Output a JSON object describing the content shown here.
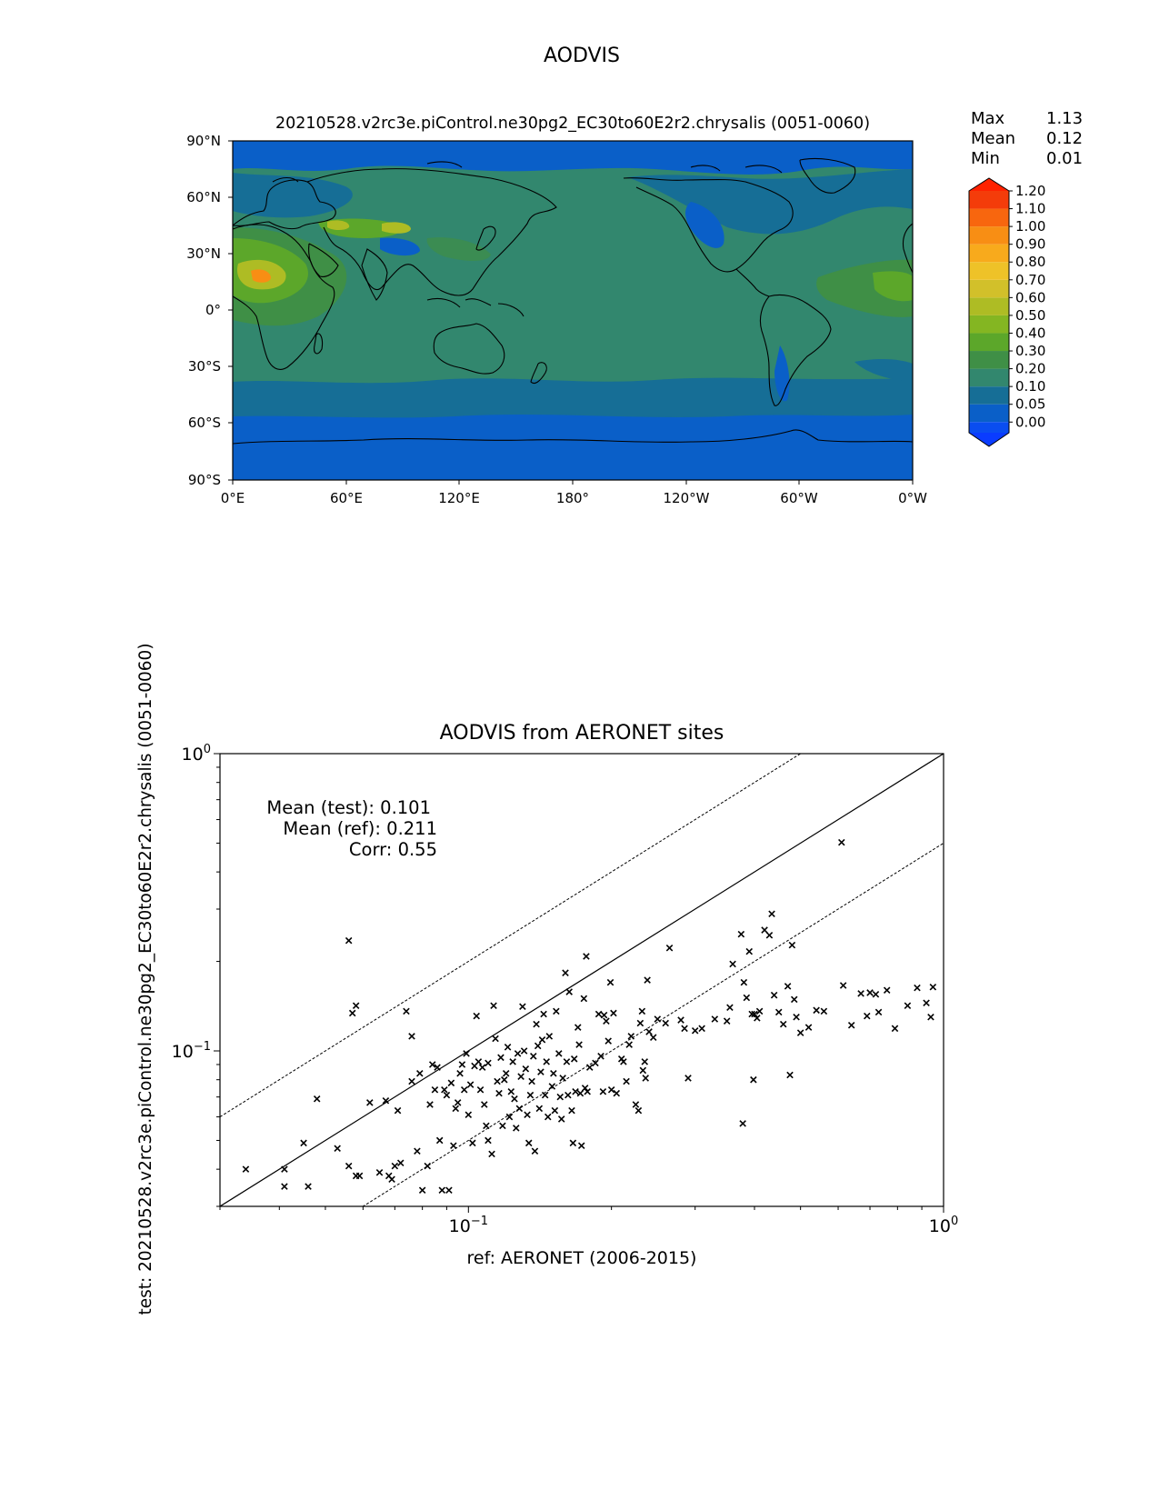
{
  "figure": {
    "suptitle": "AODVIS"
  },
  "map": {
    "title": "20210528.v2rc3e.piControl.ne30pg2_EC30to60E2r2.chrysalis (0051-0060)",
    "stats": [
      {
        "label": "Max",
        "value": "1.13"
      },
      {
        "label": "Mean",
        "value": "0.12"
      },
      {
        "label": "Min",
        "value": "0.01"
      }
    ],
    "lat_ticks": [
      "90°N",
      "60°N",
      "30°N",
      "0°",
      "30°S",
      "60°S",
      "90°S"
    ],
    "lon_ticks": [
      "0°E",
      "60°E",
      "120°E",
      "180°",
      "120°W",
      "60°W",
      "0°W"
    ]
  },
  "colorbar": {
    "levels": [
      "0.00",
      "0.05",
      "0.10",
      "0.20",
      "0.30",
      "0.40",
      "0.50",
      "0.60",
      "0.70",
      "0.80",
      "0.90",
      "1.00",
      "1.10",
      "1.20"
    ],
    "colors": [
      "#0a4df0",
      "#0a5fc8",
      "#166e96",
      "#32876e",
      "#3f8f46",
      "#5ca72a",
      "#84b622",
      "#aebc24",
      "#d2c02a",
      "#eec228",
      "#f8aa1c",
      "#f88e14",
      "#f8660e",
      "#f43c0a",
      "#ff2200"
    ],
    "under_color": "#0a3cff",
    "over_color": "#ff2200"
  },
  "chart_data": {
    "type": "scatter",
    "title": "AODVIS from AERONET sites",
    "xlabel": "ref: AERONET (2006-2015)",
    "ylabel": "test: 20210528.v2rc3e.piControl.ne30pg2_EC30to60E2r2.chrysalis (0051-0060)",
    "x_scale": "log",
    "y_scale": "log",
    "xlim": [
      0.03,
      1.0
    ],
    "ylim": [
      0.03,
      1.0
    ],
    "x_major_ticks": [
      {
        "value": 0.1,
        "base": "10",
        "exp": "−1"
      },
      {
        "value": 1.0,
        "base": "10",
        "exp": "0"
      }
    ],
    "y_major_ticks": [
      {
        "value": 0.1,
        "base": "10",
        "exp": "−1"
      },
      {
        "value": 1.0,
        "base": "10",
        "exp": "0"
      }
    ],
    "marker": "x",
    "reference_lines": [
      {
        "style": "solid",
        "slope": 1
      },
      {
        "style": "dashed",
        "slope": 2
      },
      {
        "style": "dashed",
        "slope": 0.5
      }
    ],
    "annotations": [
      "Mean (test): 0.101",
      "Mean (ref): 0.211",
      "Corr: 0.55"
    ],
    "points": [
      [
        0.034,
        0.04
      ],
      [
        0.041,
        0.04
      ],
      [
        0.041,
        0.035
      ],
      [
        0.045,
        0.049
      ],
      [
        0.046,
        0.035
      ],
      [
        0.048,
        0.069
      ],
      [
        0.053,
        0.047
      ],
      [
        0.056,
        0.235
      ],
      [
        0.057,
        0.134
      ],
      [
        0.058,
        0.142
      ],
      [
        0.056,
        0.041
      ],
      [
        0.058,
        0.038
      ],
      [
        0.059,
        0.038
      ],
      [
        0.062,
        0.067
      ],
      [
        0.065,
        0.039
      ],
      [
        0.067,
        0.068
      ],
      [
        0.068,
        0.038
      ],
      [
        0.069,
        0.037
      ],
      [
        0.07,
        0.041
      ],
      [
        0.071,
        0.063
      ],
      [
        0.072,
        0.042
      ],
      [
        0.074,
        0.136
      ],
      [
        0.076,
        0.112
      ],
      [
        0.076,
        0.079
      ],
      [
        0.078,
        0.046
      ],
      [
        0.079,
        0.084
      ],
      [
        0.08,
        0.034
      ],
      [
        0.082,
        0.041
      ],
      [
        0.083,
        0.066
      ],
      [
        0.084,
        0.09
      ],
      [
        0.085,
        0.074
      ],
      [
        0.086,
        0.088
      ],
      [
        0.087,
        0.05
      ],
      [
        0.088,
        0.034
      ],
      [
        0.089,
        0.074
      ],
      [
        0.09,
        0.071
      ],
      [
        0.091,
        0.034
      ],
      [
        0.092,
        0.078
      ],
      [
        0.093,
        0.048
      ],
      [
        0.094,
        0.064
      ],
      [
        0.095,
        0.067
      ],
      [
        0.096,
        0.084
      ],
      [
        0.097,
        0.09
      ],
      [
        0.098,
        0.074
      ],
      [
        0.099,
        0.098
      ],
      [
        0.1,
        0.061
      ],
      [
        0.101,
        0.077
      ],
      [
        0.102,
        0.049
      ],
      [
        0.103,
        0.089
      ],
      [
        0.104,
        0.131
      ],
      [
        0.105,
        0.092
      ],
      [
        0.106,
        0.074
      ],
      [
        0.107,
        0.088
      ],
      [
        0.108,
        0.066
      ],
      [
        0.109,
        0.056
      ],
      [
        0.11,
        0.091
      ],
      [
        0.11,
        0.05
      ],
      [
        0.112,
        0.045
      ],
      [
        0.113,
        0.142
      ],
      [
        0.114,
        0.11
      ],
      [
        0.115,
        0.079
      ],
      [
        0.116,
        0.072
      ],
      [
        0.117,
        0.095
      ],
      [
        0.118,
        0.056
      ],
      [
        0.119,
        0.08
      ],
      [
        0.12,
        0.084
      ],
      [
        0.121,
        0.103
      ],
      [
        0.122,
        0.06
      ],
      [
        0.123,
        0.073
      ],
      [
        0.124,
        0.092
      ],
      [
        0.125,
        0.069
      ],
      [
        0.126,
        0.055
      ],
      [
        0.127,
        0.098
      ],
      [
        0.128,
        0.064
      ],
      [
        0.129,
        0.082
      ],
      [
        0.13,
        0.141
      ],
      [
        0.131,
        0.1
      ],
      [
        0.132,
        0.087
      ],
      [
        0.133,
        0.061
      ],
      [
        0.134,
        0.049
      ],
      [
        0.135,
        0.071
      ],
      [
        0.136,
        0.079
      ],
      [
        0.137,
        0.096
      ],
      [
        0.138,
        0.046
      ],
      [
        0.139,
        0.123
      ],
      [
        0.14,
        0.104
      ],
      [
        0.141,
        0.064
      ],
      [
        0.142,
        0.085
      ],
      [
        0.143,
        0.109
      ],
      [
        0.144,
        0.133
      ],
      [
        0.145,
        0.071
      ],
      [
        0.146,
        0.092
      ],
      [
        0.147,
        0.06
      ],
      [
        0.148,
        0.112
      ],
      [
        0.15,
        0.076
      ],
      [
        0.151,
        0.084
      ],
      [
        0.152,
        0.063
      ],
      [
        0.153,
        0.136
      ],
      [
        0.155,
        0.098
      ],
      [
        0.156,
        0.07
      ],
      [
        0.157,
        0.059
      ],
      [
        0.158,
        0.081
      ],
      [
        0.16,
        0.183
      ],
      [
        0.161,
        0.092
      ],
      [
        0.162,
        0.071
      ],
      [
        0.163,
        0.158
      ],
      [
        0.165,
        0.063
      ],
      [
        0.166,
        0.049
      ],
      [
        0.167,
        0.094
      ],
      [
        0.168,
        0.073
      ],
      [
        0.17,
        0.12
      ],
      [
        0.171,
        0.105
      ],
      [
        0.172,
        0.072
      ],
      [
        0.173,
        0.048
      ],
      [
        0.175,
        0.15
      ],
      [
        0.176,
        0.075
      ],
      [
        0.177,
        0.208
      ],
      [
        0.178,
        0.073
      ],
      [
        0.18,
        0.088
      ],
      [
        0.185,
        0.091
      ],
      [
        0.188,
        0.133
      ],
      [
        0.19,
        0.096
      ],
      [
        0.192,
        0.073
      ],
      [
        0.193,
        0.132
      ],
      [
        0.195,
        0.126
      ],
      [
        0.197,
        0.108
      ],
      [
        0.199,
        0.17
      ],
      [
        0.2,
        0.074
      ],
      [
        0.202,
        0.134
      ],
      [
        0.205,
        0.072
      ],
      [
        0.21,
        0.094
      ],
      [
        0.212,
        0.092
      ],
      [
        0.215,
        0.079
      ],
      [
        0.218,
        0.105
      ],
      [
        0.22,
        0.112
      ],
      [
        0.225,
        0.066
      ],
      [
        0.228,
        0.063
      ],
      [
        0.23,
        0.124
      ],
      [
        0.232,
        0.136
      ],
      [
        0.233,
        0.086
      ],
      [
        0.235,
        0.092
      ],
      [
        0.236,
        0.081
      ],
      [
        0.238,
        0.173
      ],
      [
        0.24,
        0.116
      ],
      [
        0.245,
        0.111
      ],
      [
        0.25,
        0.128
      ],
      [
        0.26,
        0.124
      ],
      [
        0.265,
        0.222
      ],
      [
        0.28,
        0.127
      ],
      [
        0.285,
        0.119
      ],
      [
        0.29,
        0.081
      ],
      [
        0.3,
        0.117
      ],
      [
        0.31,
        0.119
      ],
      [
        0.33,
        0.128
      ],
      [
        0.35,
        0.126
      ],
      [
        0.355,
        0.14
      ],
      [
        0.36,
        0.196
      ],
      [
        0.375,
        0.247
      ],
      [
        0.378,
        0.057
      ],
      [
        0.38,
        0.17
      ],
      [
        0.385,
        0.151
      ],
      [
        0.39,
        0.216
      ],
      [
        0.395,
        0.133
      ],
      [
        0.398,
        0.08
      ],
      [
        0.4,
        0.133
      ],
      [
        0.405,
        0.129
      ],
      [
        0.41,
        0.136
      ],
      [
        0.42,
        0.255
      ],
      [
        0.43,
        0.245
      ],
      [
        0.435,
        0.289
      ],
      [
        0.44,
        0.154
      ],
      [
        0.45,
        0.135
      ],
      [
        0.46,
        0.123
      ],
      [
        0.47,
        0.165
      ],
      [
        0.475,
        0.083
      ],
      [
        0.48,
        0.227
      ],
      [
        0.485,
        0.149
      ],
      [
        0.49,
        0.13
      ],
      [
        0.5,
        0.115
      ],
      [
        0.52,
        0.12
      ],
      [
        0.54,
        0.137
      ],
      [
        0.56,
        0.136
      ],
      [
        0.61,
        0.503
      ],
      [
        0.615,
        0.166
      ],
      [
        0.64,
        0.122
      ],
      [
        0.67,
        0.156
      ],
      [
        0.69,
        0.131
      ],
      [
        0.7,
        0.157
      ],
      [
        0.72,
        0.155
      ],
      [
        0.73,
        0.135
      ],
      [
        0.76,
        0.16
      ],
      [
        0.79,
        0.119
      ],
      [
        0.84,
        0.142
      ],
      [
        0.88,
        0.163
      ],
      [
        0.92,
        0.145
      ],
      [
        0.94,
        0.13
      ],
      [
        0.95,
        0.164
      ]
    ]
  }
}
